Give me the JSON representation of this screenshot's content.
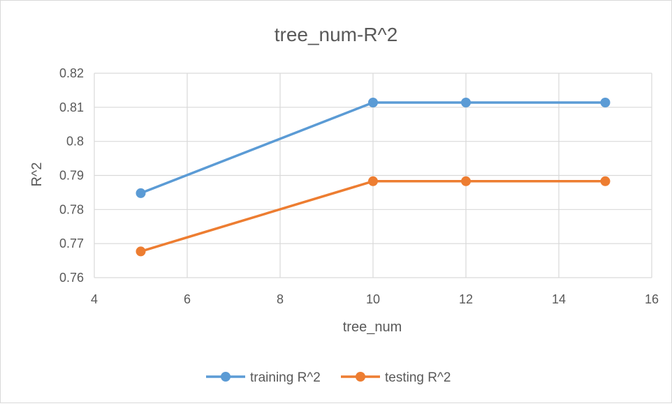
{
  "chart_data": {
    "type": "line",
    "title": "tree_num-R^2",
    "xlabel": "tree_num",
    "ylabel": "R^2",
    "xlim": [
      4,
      16
    ],
    "ylim": [
      0.76,
      0.82
    ],
    "x_ticks": [
      4,
      6,
      8,
      10,
      12,
      14,
      16
    ],
    "y_ticks": [
      0.76,
      0.77,
      0.78,
      0.79,
      0.8,
      0.81,
      0.82
    ],
    "x_tick_labels": [
      "4",
      "6",
      "8",
      "10",
      "12",
      "14",
      "16"
    ],
    "y_tick_labels": [
      "0.76",
      "0.77",
      "0.78",
      "0.79",
      "0.8",
      "0.81",
      "0.82"
    ],
    "grid": true,
    "legend_position": "bottom",
    "series": [
      {
        "name": "training R^2",
        "color": "#5b9bd5",
        "x": [
          5,
          10,
          12,
          15
        ],
        "values": [
          0.7848,
          0.8114,
          0.8114,
          0.8114
        ]
      },
      {
        "name": "testing R^2",
        "color": "#ed7d31",
        "x": [
          5,
          10,
          12,
          15
        ],
        "values": [
          0.7677,
          0.7883,
          0.7883,
          0.7883
        ]
      }
    ]
  }
}
